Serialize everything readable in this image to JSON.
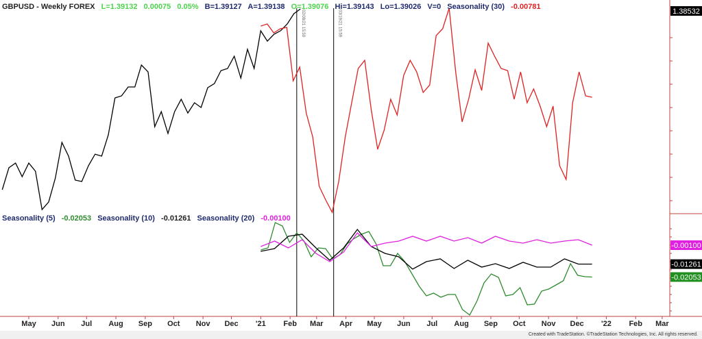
{
  "header": {
    "symbol": "GBPUSD - Weekly  FOREX",
    "last": "L=1.39132",
    "change": "0.00075",
    "change_pct": "0.05%",
    "bid": "B=1.39127",
    "ask": "A=1.39138",
    "open": "O=1.39076",
    "high": "Hi=1.39143",
    "low": "Lo=1.39026",
    "volume": "V=0",
    "indicator": "Seasonality (30)",
    "indicator_value": "-0.00781"
  },
  "subpane": {
    "items": [
      {
        "label": "Seasonality (5)",
        "value": "-0.02053",
        "color": "#2e8b2e"
      },
      {
        "label": "Seasonality (10)",
        "value": "-0.01261",
        "color": "#000000"
      },
      {
        "label": "Seasonality (20)",
        "value": "-0.00100",
        "color": "#e020e0"
      }
    ]
  },
  "footer": "Created with TradeStation. ©TradeStation Technologies, Inc. All rights reserved.",
  "chart_data": {
    "type": "line",
    "x_type": "date",
    "x_ticks": [
      "May",
      "Jun",
      "Jul",
      "Aug",
      "Sep",
      "Oct",
      "Nov",
      "Dec",
      "'21",
      "Feb",
      "Mar",
      "Apr",
      "May",
      "Jun",
      "Jul",
      "Aug",
      "Sep",
      "Oct",
      "Nov",
      "Dec",
      "'22",
      "Feb",
      "Mar"
    ],
    "x_tick_dates": [
      "2020-05-01",
      "2020-06-01",
      "2020-07-01",
      "2020-08-01",
      "2020-09-01",
      "2020-10-01",
      "2020-11-01",
      "2020-12-01",
      "2021-01-01",
      "2021-02-01",
      "2021-03-01",
      "2021-04-01",
      "2021-05-01",
      "2021-06-01",
      "2021-07-01",
      "2021-08-01",
      "2021-09-01",
      "2021-10-01",
      "2021-11-01",
      "2021-12-01",
      "2022-01-01",
      "2022-02-01",
      "2022-03-01"
    ],
    "grid": false,
    "vertical_markers": [
      {
        "date": "2021-02-08",
        "label": "02/08/21 15:59"
      },
      {
        "date": "2021-03-19",
        "label": "03/19/21 15:59"
      }
    ],
    "panes": [
      {
        "axis_label": "1.38532",
        "axis_label_color": "#000000",
        "series": [
          {
            "name": "GBPUSD",
            "color": "#000000",
            "start": "2020-04-03",
            "end": "2021-02-12",
            "values": [
              1.2279,
              1.2476,
              1.2518,
              1.2396,
              1.2518,
              1.2445,
              1.2101,
              1.2169,
              1.2383,
              1.2703,
              1.258,
              1.2365,
              1.2353,
              1.2494,
              1.2598,
              1.258,
              1.277,
              1.3102,
              1.312,
              1.32,
              1.32,
              1.3397,
              1.3335,
              1.2844,
              1.2979,
              1.2783,
              1.2979,
              1.309,
              1.2967,
              1.3059,
              1.3016,
              1.3194,
              1.3231,
              1.3347,
              1.3366,
              1.3476,
              1.328,
              1.3538,
              1.3366,
              1.3704,
              1.3611,
              1.3673,
              1.3704,
              1.3765,
              1.3857,
              1.39
            ]
          },
          {
            "name": "Seasonality (30)",
            "color": "#e02020",
            "start": "2021-01-01",
            "end": "2021-12-17",
            "values": [
              1.3746,
              1.3765,
              1.3685,
              1.3722,
              1.3734,
              1.3255,
              1.3378,
              1.2967,
              1.2752,
              1.231,
              1.2187,
              1.2076,
              1.2353,
              1.2752,
              1.3059,
              1.3366,
              1.3439,
              1.2997,
              1.2641,
              1.2813,
              1.309,
              1.2948,
              1.3304,
              1.3439,
              1.3335,
              1.3151,
              1.3218,
              1.3661,
              1.3722,
              1.3906,
              1.3335,
              1.2887,
              1.309,
              1.3354,
              1.3169,
              1.3593,
              1.3476,
              1.3366,
              1.3347,
              1.309,
              1.3335,
              1.3059,
              1.3182,
              1.3028,
              1.2844,
              1.3028,
              1.2494,
              1.2371,
              1.3059,
              1.3335,
              1.312,
              1.3108
            ]
          }
        ]
      },
      {
        "series": [
          {
            "name": "Seasonality (5)",
            "color": "#2e8b2e",
            "label_bg": "#1f8f1f",
            "last": "-0.02053",
            "start": "2021-01-01",
            "end": "2021-12-17",
            "values": [
              -0.00394,
              -0.00268,
              0.01286,
              0.01076,
              0.00068,
              0.00656,
              0.00152,
              -0.00814,
              -0.00268,
              -0.0031,
              -0.0094,
              -0.00688,
              -0.00016,
              0.0032,
              0.00572,
              0.0074,
              -0.00016,
              -0.0136,
              -0.0136,
              -0.00604,
              -0.01108,
              -0.01864,
              -0.0262,
              -0.03208,
              -0.0304,
              -0.03292,
              -0.03124,
              -0.03124,
              -0.04048,
              -0.04384,
              -0.03544,
              -0.0241,
              -0.01864,
              -0.02074,
              -0.03208,
              -0.03124,
              -0.02704,
              -0.03754,
              -0.03712,
              -0.02914,
              -0.02788,
              -0.02536,
              -0.02284,
              -0.01234,
              -0.01948,
              -0.02032,
              -0.02053
            ]
          },
          {
            "name": "Seasonality (10)",
            "color": "#000000",
            "label_bg": "#000000",
            "last": "-0.01261",
            "start": "2021-01-01",
            "end": "2021-12-17",
            "values": [
              -0.00478,
              -0.0031,
              0.00446,
              0.00572,
              -0.00268,
              -0.01024,
              -0.00268,
              0.00866,
              -0.00184,
              -0.00604,
              -0.00814,
              -0.0157,
              -0.01108,
              -0.0094,
              -0.01528,
              -0.01024,
              -0.01444,
              -0.01234,
              -0.01528,
              -0.0115,
              -0.01444,
              -0.01444,
              -0.0094,
              -0.01261,
              -0.01261
            ]
          },
          {
            "name": "Seasonality (20)",
            "color": "#e020e0",
            "label_bg": "#e020e0",
            "last": "-0.00100",
            "start": "2021-01-01",
            "end": "2021-12-17",
            "values": [
              -0.00184,
              0.00152,
              -0.00268,
              0.00236,
              -0.00604,
              -0.01108,
              -0.0052,
              0.00656,
              -0.00184,
              0.00026,
              0.00152,
              0.00446,
              0.00152,
              0.00446,
              0.00152,
              0.00362,
              0.00026,
              0.00446,
              0.00152,
              0.00026,
              0.00236,
              0.00026,
              0.00152,
              0.00236,
              -0.001
            ]
          }
        ]
      }
    ]
  }
}
